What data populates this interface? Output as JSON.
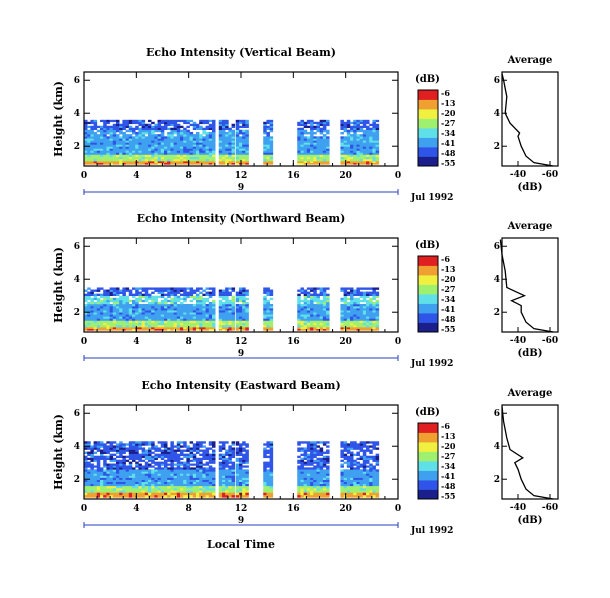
{
  "figure": {
    "colorbar_unit": "(dB)",
    "average_title": "Average",
    "xaxis_date": "Jul 1992",
    "xaxis_label": "Local Time"
  },
  "chart_data": [
    {
      "type": "heatmap",
      "title": "Echo Intensity (Vertical Beam)",
      "ylabel": "Height (km)",
      "xlabel": "Local Time",
      "x_ticks": [
        "0",
        "4",
        "8",
        "12",
        "16",
        "20",
        "0"
      ],
      "x_range": [
        0,
        24
      ],
      "day_label": "9",
      "date_label": "Jul 1992",
      "y_ticks": [
        "2",
        "4",
        "6"
      ],
      "y_range": [
        0.8,
        6.5
      ],
      "colorbar": {
        "label": "(dB)",
        "ticks": [
          "-6",
          "-13",
          "-20",
          "-27",
          "-34",
          "-41",
          "-48",
          "-55"
        ],
        "colors": [
          "#1a1f8c",
          "#2f55e8",
          "#3fa0f0",
          "#5fe0e8",
          "#a0f070",
          "#f0f040",
          "#f0a030",
          "#e02020"
        ]
      },
      "data_segments": [
        [
          0,
          10
        ],
        [
          10.3,
          11.3
        ],
        [
          11.6,
          12.4
        ],
        [
          13.7,
          14.2
        ],
        [
          16.3,
          18.6
        ],
        [
          19.6,
          22.3
        ]
      ],
      "layers": [
        {
          "bottom_km": 0.9,
          "top_km": 1.1,
          "level": 6
        },
        {
          "bottom_km": 1.1,
          "top_km": 1.5,
          "level": 4
        },
        {
          "bottom_km": 1.5,
          "top_km": 2.6,
          "level": 2
        },
        {
          "bottom_km": 2.6,
          "top_km": 3.0,
          "level": 2
        },
        {
          "bottom_km": 3.0,
          "top_km": 3.6,
          "level": 1
        }
      ],
      "average_profile": {
        "xlabel": "(dB)",
        "x_ticks": [
          "-40",
          "-60"
        ],
        "x_range": [
          -30,
          -65
        ],
        "y_ticks": [
          "2",
          "4",
          "6"
        ],
        "x": [
          -62,
          -50,
          -45,
          -42,
          -40,
          -41,
          -35,
          -32,
          -33,
          -31,
          -30
        ],
        "y": [
          0.8,
          1.0,
          1.4,
          2.0,
          2.6,
          2.8,
          3.4,
          4.0,
          5.0,
          6.0,
          6.4
        ]
      }
    },
    {
      "type": "heatmap",
      "title": "Echo Intensity (Northward Beam)",
      "ylabel": "Height (km)",
      "xlabel": "Local Time",
      "x_ticks": [
        "0",
        "4",
        "8",
        "12",
        "16",
        "20",
        "0"
      ],
      "x_range": [
        0,
        24
      ],
      "day_label": "9",
      "date_label": "Jul 1992",
      "y_ticks": [
        "2",
        "4",
        "6"
      ],
      "y_range": [
        0.8,
        6.5
      ],
      "colorbar": {
        "label": "(dB)",
        "ticks": [
          "-6",
          "-13",
          "-20",
          "-27",
          "-34",
          "-41",
          "-48",
          "-55"
        ],
        "colors": [
          "#1a1f8c",
          "#2f55e8",
          "#3fa0f0",
          "#5fe0e8",
          "#a0f070",
          "#f0f040",
          "#f0a030",
          "#e02020"
        ]
      },
      "data_segments": [
        [
          0,
          10
        ],
        [
          10.3,
          11.3
        ],
        [
          11.6,
          12.4
        ],
        [
          13.7,
          14.2
        ],
        [
          16.3,
          18.6
        ],
        [
          19.6,
          22.3
        ]
      ],
      "layers": [
        {
          "bottom_km": 0.9,
          "top_km": 1.1,
          "level": 6
        },
        {
          "bottom_km": 1.1,
          "top_km": 1.5,
          "level": 4
        },
        {
          "bottom_km": 1.5,
          "top_km": 2.5,
          "level": 2
        },
        {
          "bottom_km": 2.5,
          "top_km": 3.0,
          "level": 3
        },
        {
          "bottom_km": 3.0,
          "top_km": 3.5,
          "level": 1
        }
      ],
      "average_profile": {
        "xlabel": "(dB)",
        "x_ticks": [
          "-40",
          "-60"
        ],
        "x_range": [
          -30,
          -65
        ],
        "y_ticks": [
          "2",
          "4",
          "6"
        ],
        "x": [
          -62,
          -50,
          -45,
          -42,
          -42,
          -36,
          -44,
          -33,
          -32,
          -30,
          -29
        ],
        "y": [
          0.8,
          1.0,
          1.4,
          2.0,
          2.4,
          2.7,
          3.0,
          3.5,
          4.5,
          5.5,
          6.4
        ]
      }
    },
    {
      "type": "heatmap",
      "title": "Echo Intensity (Eastward Beam)",
      "ylabel": "Height (km)",
      "xlabel": "Local Time",
      "x_ticks": [
        "0",
        "4",
        "8",
        "12",
        "16",
        "20",
        "0"
      ],
      "x_range": [
        0,
        24
      ],
      "day_label": "9",
      "date_label": "Jul 1992",
      "y_ticks": [
        "2",
        "4",
        "6"
      ],
      "y_range": [
        0.8,
        6.5
      ],
      "colorbar": {
        "label": "(dB)",
        "ticks": [
          "-6",
          "-13",
          "-20",
          "-27",
          "-34",
          "-41",
          "-48",
          "-55"
        ],
        "colors": [
          "#1a1f8c",
          "#2f55e8",
          "#3fa0f0",
          "#5fe0e8",
          "#a0f070",
          "#f0f040",
          "#f0a030",
          "#e02020"
        ]
      },
      "data_segments": [
        [
          0,
          10
        ],
        [
          10.3,
          11.3
        ],
        [
          11.6,
          12.4
        ],
        [
          13.7,
          14.2
        ],
        [
          16.3,
          18.6
        ],
        [
          19.6,
          22.3
        ]
      ],
      "layers": [
        {
          "bottom_km": 0.9,
          "top_km": 1.2,
          "level": 6
        },
        {
          "bottom_km": 1.2,
          "top_km": 1.6,
          "level": 4
        },
        {
          "bottom_km": 1.6,
          "top_km": 2.6,
          "level": 2
        },
        {
          "bottom_km": 2.6,
          "top_km": 3.3,
          "level": 1
        },
        {
          "bottom_km": 3.3,
          "top_km": 4.3,
          "level": 1
        }
      ],
      "average_profile": {
        "xlabel": "(dB)",
        "x_ticks": [
          "-40",
          "-60"
        ],
        "x_range": [
          -30,
          -65
        ],
        "y_ticks": [
          "2",
          "4",
          "6"
        ],
        "x": [
          -62,
          -50,
          -45,
          -42,
          -40,
          -38,
          -43,
          -35,
          -33,
          -31,
          -30
        ],
        "y": [
          0.8,
          1.0,
          1.4,
          2.0,
          2.6,
          3.0,
          3.3,
          3.8,
          4.5,
          5.5,
          6.4
        ]
      }
    }
  ]
}
